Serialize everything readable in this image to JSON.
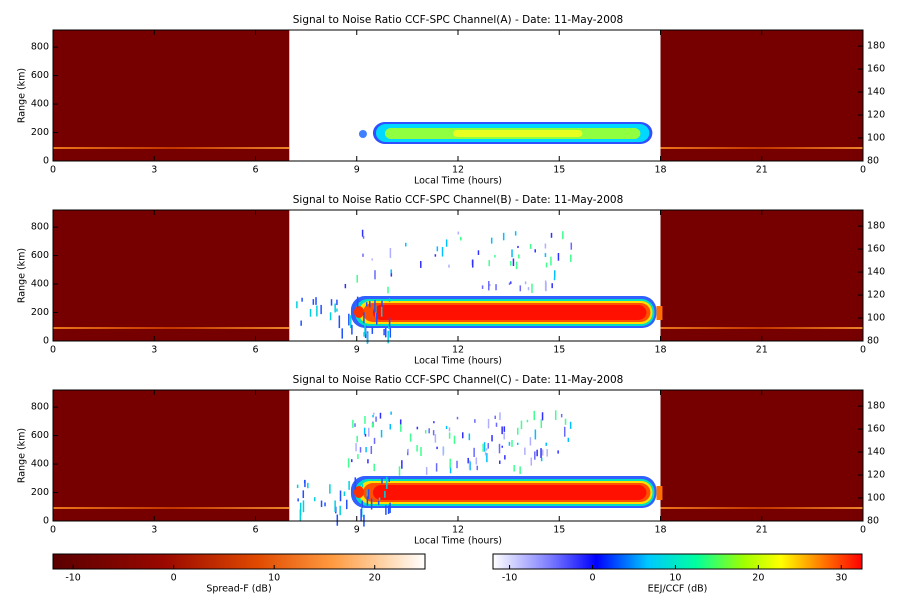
{
  "chart_data": [
    {
      "type": "heatmap",
      "title": "Signal to Noise Ratio CCF-SPC Channel(A) - Date: 11-May-2008",
      "xlabel": "Local Time (hours)",
      "ylabel": "Range (km)",
      "xlim": [
        0,
        24
      ],
      "xticks": [
        0,
        3,
        6,
        9,
        12,
        15,
        18,
        21,
        {
          "value": 24,
          "label": "0"
        }
      ],
      "ylim": [
        0,
        920
      ],
      "yticks": [
        0,
        200,
        400,
        600,
        800
      ],
      "y2lim": [
        80,
        194
      ],
      "y2ticks": [
        80,
        100,
        120,
        140,
        160,
        180
      ]
    },
    {
      "type": "heatmap",
      "title": "Signal to Noise Ratio CCF-SPC Channel(B) - Date: 11-May-2008",
      "xlabel": "Local Time (hours)",
      "ylabel": "Range (km)",
      "xlim": [
        0,
        24
      ],
      "xticks": [
        0,
        3,
        6,
        9,
        12,
        15,
        18,
        21,
        {
          "value": 24,
          "label": "0"
        }
      ],
      "ylim": [
        0,
        920
      ],
      "yticks": [
        0,
        200,
        400,
        600,
        800
      ],
      "y2lim": [
        80,
        194
      ],
      "y2ticks": [
        80,
        100,
        120,
        140,
        160,
        180
      ]
    },
    {
      "type": "heatmap",
      "title": "Signal to Noise Ratio CCF-SPC Channel(C) - Date: 11-May-2008",
      "xlabel": "Local Time (hours)",
      "ylabel": "Range (km)",
      "xlim": [
        0,
        24
      ],
      "xticks": [
        0,
        3,
        6,
        9,
        12,
        15,
        18,
        21,
        {
          "value": 24,
          "label": "0"
        }
      ],
      "ylim": [
        0,
        920
      ],
      "yticks": [
        0,
        200,
        400,
        600,
        800
      ],
      "y2lim": [
        80,
        194
      ],
      "y2ticks": [
        80,
        100,
        120,
        140,
        160,
        180
      ]
    },
    {
      "type": "colorbar",
      "label": "Spread-F (dB)",
      "lim": [
        -12,
        25
      ],
      "ticks": [
        -10,
        0,
        10,
        20
      ]
    },
    {
      "type": "colorbar",
      "label": "EEJ/CCF (dB)",
      "lim": [
        -12,
        32.5
      ],
      "ticks": [
        -10,
        0,
        10,
        20,
        30
      ]
    }
  ]
}
